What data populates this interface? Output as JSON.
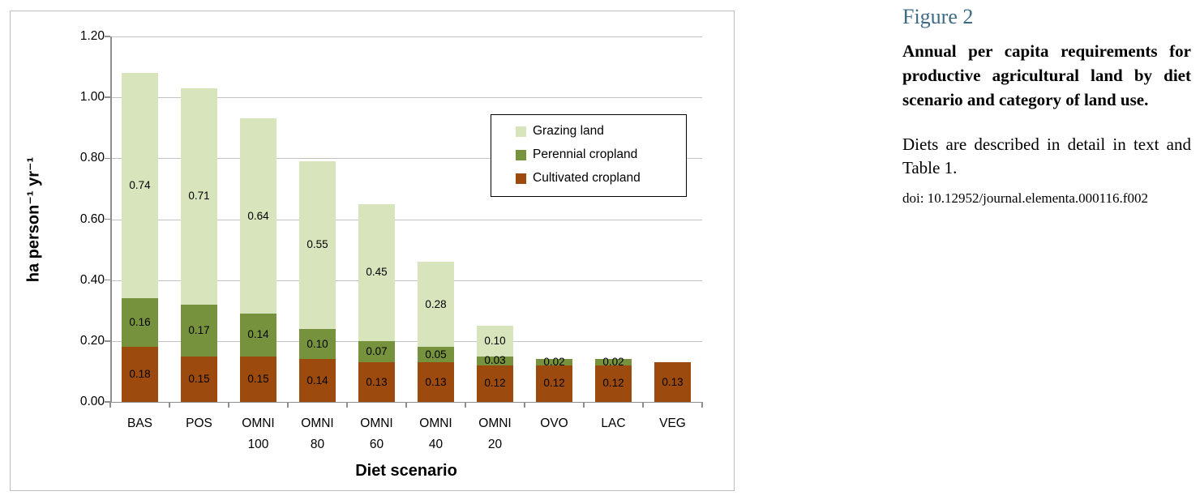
{
  "figure_panel": {
    "heading": "Figure 2",
    "heading_color": "#3c6a87",
    "title": "Annual per capita requirements for productive agricultural land by diet scenario and category of land use.",
    "description": "Diets are described in detail in text and Table 1.",
    "doi": "doi: 10.12952/journal.elementa.000116.f002"
  },
  "chart_data": {
    "type": "bar",
    "stacked": true,
    "title": "",
    "xlabel": "Diet scenario",
    "ylabel": "ha person⁻¹ yr⁻¹",
    "ylim": [
      0,
      1.2
    ],
    "ytick_labels": [
      "0.00",
      "0.20",
      "0.40",
      "0.60",
      "0.80",
      "1.00",
      "1.20"
    ],
    "grid": true,
    "categories": [
      "BAS",
      "POS",
      "OMNI 100",
      "OMNI 80",
      "OMNI 60",
      "OMNI 40",
      "OMNI 20",
      "OVO",
      "LAC",
      "VEG"
    ],
    "series": [
      {
        "name": "Cultivated cropland",
        "color": "#9c4a0e",
        "values": [
          0.18,
          0.15,
          0.15,
          0.14,
          0.13,
          0.13,
          0.12,
          0.12,
          0.12,
          0.13
        ]
      },
      {
        "name": "Perennial cropland",
        "color": "#76923c",
        "values": [
          0.16,
          0.17,
          0.14,
          0.1,
          0.07,
          0.05,
          0.03,
          0.02,
          0.02,
          0
        ]
      },
      {
        "name": "Grazing land",
        "color": "#d7e4bc",
        "values": [
          0.74,
          0.71,
          0.64,
          0.55,
          0.45,
          0.28,
          0.1,
          0,
          0,
          0
        ]
      }
    ],
    "legend_position": "inside plot, upper right",
    "legend_items": [
      {
        "label": "Grazing land",
        "color": "#d7e4bc"
      },
      {
        "label": "Perennial cropland",
        "color": "#76923c"
      },
      {
        "label": "Cultivated cropland",
        "color": "#9c4a0e"
      }
    ],
    "style": {
      "axis_color": "#8e8e8e",
      "gridline_color": "#c3c3c3",
      "chart_border_color": "#bdbdbd"
    }
  }
}
